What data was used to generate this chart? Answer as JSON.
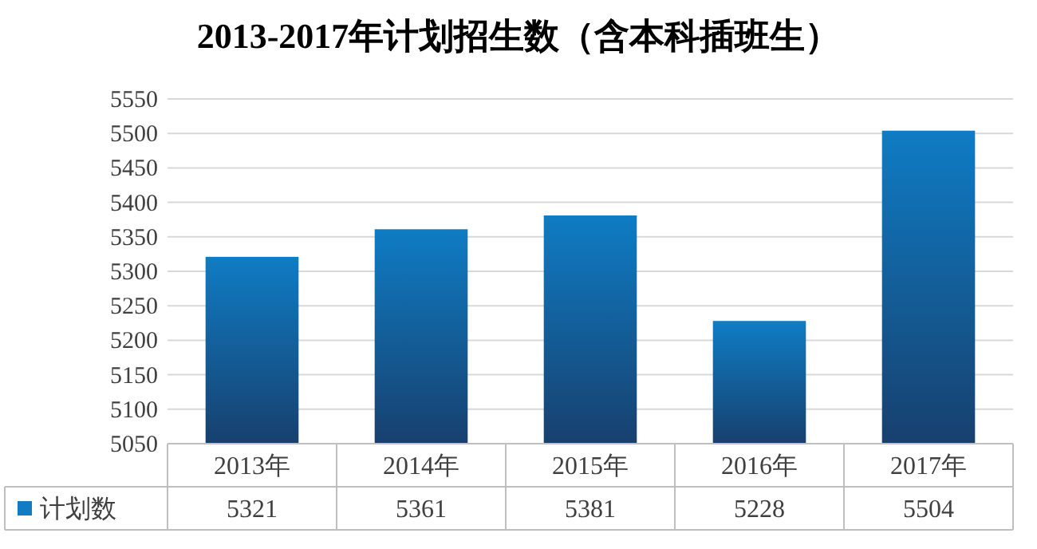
{
  "chart_data": {
    "type": "bar",
    "title": "2013-2017年计划招生数（含本科插班生）",
    "categories": [
      "2013年",
      "2014年",
      "2015年",
      "2016年",
      "2017年"
    ],
    "series": [
      {
        "name": "计划数",
        "color": "#0f7cc4",
        "values": [
          5321,
          5361,
          5381,
          5228,
          5504
        ]
      }
    ],
    "ylim": [
      5050,
      5550
    ],
    "yticks": [
      5050,
      5100,
      5150,
      5200,
      5250,
      5300,
      5350,
      5400,
      5450,
      5500,
      5550
    ],
    "grid": "y",
    "legend": "bottom",
    "data_labels": true
  }
}
